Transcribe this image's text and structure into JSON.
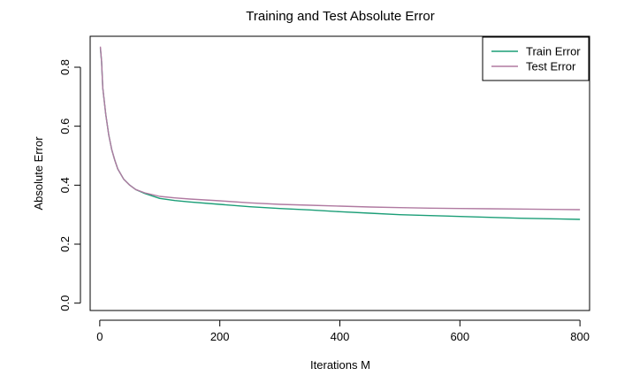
{
  "chart_data": {
    "type": "line",
    "title": "Training and Test Absolute Error",
    "xlabel": "Iterations M",
    "ylabel": "Absolute Error",
    "xlim": [
      -16,
      816
    ],
    "ylim": [
      -0.025,
      0.905
    ],
    "xticks": [
      0,
      200,
      400,
      600,
      800
    ],
    "yticks": [
      0.0,
      0.2,
      0.4,
      0.6,
      0.8
    ],
    "xtick_labels": [
      "0",
      "200",
      "400",
      "600",
      "800"
    ],
    "ytick_labels": [
      "0.0",
      "0.2",
      "0.4",
      "0.6",
      "0.8"
    ],
    "grid": false,
    "legend_position": "top-right",
    "series": [
      {
        "name": "Train Error",
        "color": "#1b9e77",
        "x": [
          1,
          3,
          5,
          10,
          15,
          20,
          25,
          30,
          40,
          50,
          60,
          75,
          100,
          125,
          150,
          200,
          250,
          300,
          350,
          400,
          450,
          500,
          550,
          600,
          650,
          700,
          750,
          800
        ],
        "y": [
          0.865,
          0.82,
          0.73,
          0.64,
          0.57,
          0.52,
          0.485,
          0.455,
          0.42,
          0.4,
          0.385,
          0.372,
          0.355,
          0.348,
          0.343,
          0.335,
          0.327,
          0.321,
          0.316,
          0.31,
          0.305,
          0.3,
          0.297,
          0.294,
          0.291,
          0.288,
          0.286,
          0.284
        ]
      },
      {
        "name": "Test Error",
        "color": "#b07aa1",
        "x": [
          1,
          3,
          5,
          10,
          15,
          20,
          25,
          30,
          40,
          50,
          60,
          75,
          100,
          125,
          150,
          200,
          250,
          300,
          350,
          400,
          450,
          500,
          550,
          600,
          650,
          700,
          750,
          800
        ],
        "y": [
          0.87,
          0.82,
          0.73,
          0.64,
          0.57,
          0.52,
          0.485,
          0.455,
          0.42,
          0.4,
          0.385,
          0.374,
          0.362,
          0.357,
          0.353,
          0.347,
          0.34,
          0.335,
          0.332,
          0.329,
          0.326,
          0.324,
          0.322,
          0.321,
          0.32,
          0.319,
          0.318,
          0.317
        ]
      }
    ]
  }
}
